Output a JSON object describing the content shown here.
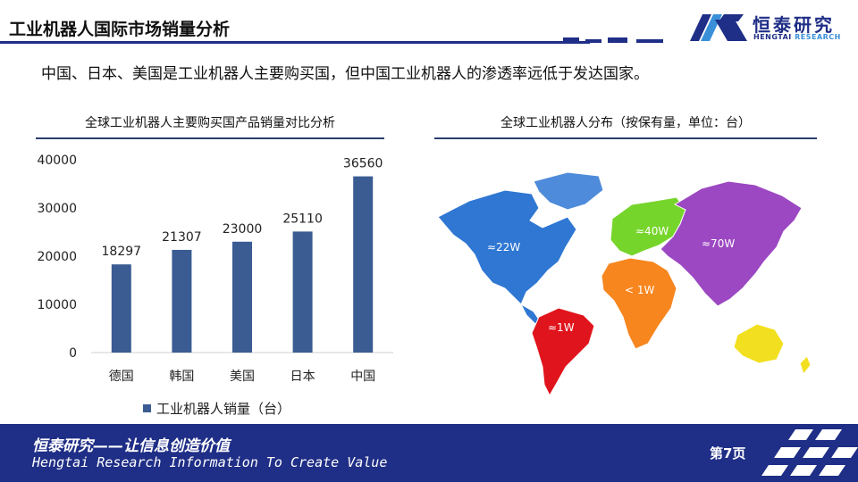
{
  "header": {
    "title": "工业机器人国际市场销量分析",
    "logo_name": "恒泰研究",
    "logo_sub_a": "HENGTAI",
    "logo_sub_b": "RESEARCH"
  },
  "subtitle": "中国、日本、美国是工业机器人主要购买国，但中国工业机器人的渗透率远低于发达国家。",
  "left_section": {
    "title": "全球工业机器人主要购买国产品销量对比分析"
  },
  "right_section": {
    "title": "全球工业机器人分布（按保有量，单位：台）"
  },
  "chart_data": {
    "type": "bar",
    "title": "全球工业机器人主要购买国产品销量对比分析",
    "categories": [
      "德国",
      "韩国",
      "美国",
      "日本",
      "中国"
    ],
    "series": [
      {
        "name": "工业机器人销量（台）",
        "values": [
          18297,
          21307,
          23000,
          25110,
          36560
        ]
      }
    ],
    "ylim": [
      0,
      40000
    ],
    "yticks": [
      0,
      10000,
      20000,
      30000,
      40000
    ],
    "xlabel": "",
    "ylabel": "",
    "grid": false,
    "legend": "bottom",
    "bar_color": "#3a5c93"
  },
  "map": {
    "regions": [
      {
        "name": "north-america",
        "label": "≈22W",
        "color": "#2f77d3"
      },
      {
        "name": "south-america",
        "label": "≈1W",
        "color": "#e0141c"
      },
      {
        "name": "europe",
        "label": "≈40W",
        "color": "#76d52b"
      },
      {
        "name": "africa",
        "label": "< 1W",
        "color": "#f7861f"
      },
      {
        "name": "asia",
        "label": "≈70W",
        "color": "#9c48c2"
      },
      {
        "name": "oceania",
        "label": "",
        "color": "#f2e020"
      }
    ]
  },
  "footer": {
    "slogan_cn": "恒泰研究——让信息创造价值",
    "slogan_en": "Hengtai Research Information To Create Value",
    "page": "第7页"
  }
}
